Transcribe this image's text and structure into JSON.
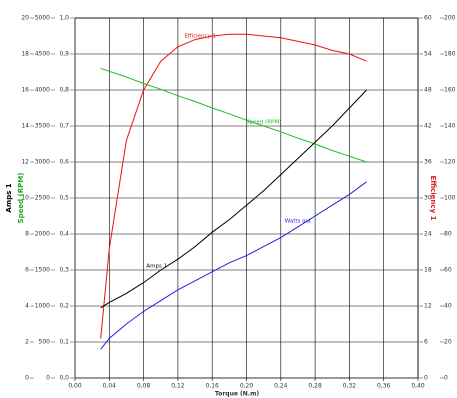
{
  "chart_data": {
    "type": "line",
    "xlabel": "Torque (N.m)",
    "xlim": [
      0,
      0.4
    ],
    "xticks": [
      {
        "value": 0,
        "label": "0,00"
      },
      {
        "value": 0.04,
        "label": "0,04"
      },
      {
        "value": 0.08,
        "label": "0,08"
      },
      {
        "value": 0.12,
        "label": "0,12"
      },
      {
        "value": 0.16,
        "label": "0,16"
      },
      {
        "value": 0.2,
        "label": "0,20"
      },
      {
        "value": 0.24,
        "label": "0,24"
      },
      {
        "value": 0.28,
        "label": "0,28"
      },
      {
        "value": 0.32,
        "label": "0,32"
      },
      {
        "value": 0.36,
        "label": "0,36"
      },
      {
        "value": 0.4,
        "label": "0,40"
      }
    ],
    "grid": true,
    "axes": [
      {
        "title": "Amps 1",
        "color": "#000000",
        "lim": [
          0,
          20
        ],
        "ticks": [
          0,
          2,
          4,
          6,
          8,
          10,
          12,
          14,
          16,
          18,
          20
        ]
      },
      {
        "title": "Speed (RPM)",
        "color": "#22aa22",
        "lim": [
          0,
          5000
        ],
        "ticks": [
          0,
          500,
          1000,
          1500,
          2000,
          2500,
          3000,
          3500,
          4000,
          4500,
          5000
        ]
      },
      {
        "lim": [
          0,
          1
        ],
        "ticks": [
          {
            "value": 0,
            "label": "0,0"
          },
          {
            "value": 0.1,
            "label": "0,1"
          },
          {
            "value": 0.2,
            "label": "0,2"
          },
          {
            "value": 0.3,
            "label": "0,3"
          },
          {
            "value": 0.4,
            "label": "0,4"
          },
          {
            "value": 0.5,
            "label": "0,5"
          },
          {
            "value": 0.6,
            "label": "0,6"
          },
          {
            "value": 0.7,
            "label": "0,7"
          },
          {
            "value": 0.8,
            "label": "0,8"
          },
          {
            "value": 0.9,
            "label": "0,9"
          },
          {
            "value": 1,
            "label": "1,0"
          }
        ]
      },
      {
        "title": "Efficiency 1",
        "color": "#dd2222",
        "lim": [
          0,
          60
        ],
        "ticks": [
          0,
          6,
          12,
          18,
          24,
          30,
          36,
          42,
          48,
          54,
          60
        ]
      },
      {
        "lim": [
          0,
          200
        ],
        "ticks": [
          0,
          20,
          40,
          60,
          80,
          100,
          120,
          140,
          160,
          180,
          200
        ]
      }
    ],
    "x": [
      0.03,
      0.04,
      0.06,
      0.08,
      0.1,
      0.12,
      0.14,
      0.16,
      0.18,
      0.2,
      0.22,
      0.24,
      0.26,
      0.28,
      0.3,
      0.32,
      0.34
    ],
    "series": [
      {
        "name": "Efficiency 1",
        "color": "#ee1111",
        "axis": 2,
        "values": [
          0.11,
          0.36,
          0.66,
          0.8,
          0.88,
          0.92,
          0.94,
          0.95,
          0.955,
          0.955,
          0.95,
          0.945,
          0.935,
          0.925,
          0.91,
          0.9,
          0.88
        ]
      },
      {
        "name": "Speed (RPM)",
        "color": "#22bb22",
        "axis": 1,
        "values": [
          4300,
          4260,
          4180,
          4090,
          4010,
          3920,
          3840,
          3750,
          3670,
          3580,
          3500,
          3420,
          3330,
          3250,
          3160,
          3080,
          3000
        ]
      },
      {
        "name": "Watts out",
        "color": "#2222dd",
        "axis": 4,
        "values": [
          16,
          22,
          30,
          37,
          43,
          49,
          54,
          59,
          64,
          68,
          73,
          78,
          84,
          90,
          96,
          102,
          109
        ]
      },
      {
        "name": "Amps 1",
        "color": "#000000",
        "axis": 0,
        "values": [
          3.9,
          4.2,
          4.7,
          5.3,
          6.0,
          6.6,
          7.3,
          8.1,
          8.8,
          9.6,
          10.4,
          11.3,
          12.2,
          13.1,
          14.0,
          15.0,
          16.0
        ]
      }
    ]
  }
}
